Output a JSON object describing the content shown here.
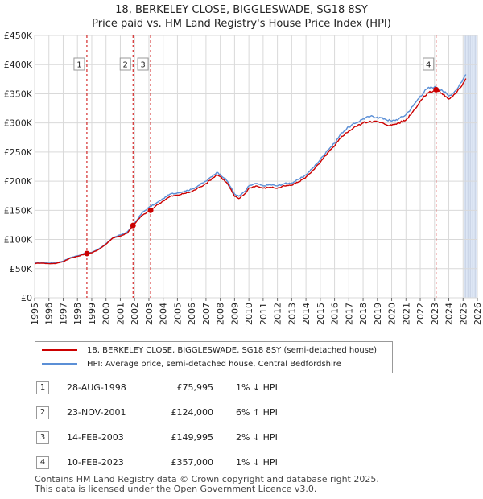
{
  "title_line1": "18, BERKELEY CLOSE, BIGGLESWADE, SG18 8SY",
  "title_line2": "Price paid vs. HM Land Registry's House Price Index (HPI)",
  "colors": {
    "red": "#cc0000",
    "blue": "#5b8fd6",
    "grid": "#d9d9d9",
    "shade": "#dde6f5"
  },
  "chart_data": {
    "type": "line",
    "x_range": [
      1995,
      2026
    ],
    "ylim": [
      0,
      450000
    ],
    "y_ticks": [
      {
        "v": 0,
        "label": "£0"
      },
      {
        "v": 50000,
        "label": "£50K"
      },
      {
        "v": 100000,
        "label": "£100K"
      },
      {
        "v": 150000,
        "label": "£150K"
      },
      {
        "v": 200000,
        "label": "£200K"
      },
      {
        "v": 250000,
        "label": "£250K"
      },
      {
        "v": 300000,
        "label": "£300K"
      },
      {
        "v": 350000,
        "label": "£350K"
      },
      {
        "v": 400000,
        "label": "£400K"
      },
      {
        "v": 450000,
        "label": "£450K"
      }
    ],
    "x_ticks": [
      "1995",
      "1996",
      "1997",
      "1998",
      "1999",
      "2000",
      "2001",
      "2002",
      "2003",
      "2004",
      "2005",
      "2006",
      "2007",
      "2008",
      "2009",
      "2010",
      "2011",
      "2012",
      "2013",
      "2014",
      "2015",
      "2016",
      "2017",
      "2018",
      "2019",
      "2020",
      "2021",
      "2022",
      "2023",
      "2024",
      "2025",
      "2026"
    ],
    "shaded_future_from": 2025.05,
    "series": [
      {
        "name": "HPI: Average price, semi-detached house, Central Bedfordshire",
        "color": "#5b8fd6",
        "points": [
          [
            1995.0,
            60000
          ],
          [
            1995.5,
            60500
          ],
          [
            1996.0,
            59500
          ],
          [
            1996.5,
            60000
          ],
          [
            1997.0,
            63000
          ],
          [
            1997.5,
            69000
          ],
          [
            1998.0,
            72000
          ],
          [
            1998.5,
            76000
          ],
          [
            1999.0,
            78000
          ],
          [
            1999.5,
            84000
          ],
          [
            2000.0,
            93000
          ],
          [
            2000.5,
            103000
          ],
          [
            2001.0,
            108000
          ],
          [
            2001.5,
            113000
          ],
          [
            2002.0,
            128000
          ],
          [
            2002.5,
            145000
          ],
          [
            2003.0,
            155000
          ],
          [
            2003.5,
            162000
          ],
          [
            2004.0,
            170000
          ],
          [
            2004.5,
            178000
          ],
          [
            2005.0,
            180000
          ],
          [
            2005.5,
            183000
          ],
          [
            2006.0,
            186000
          ],
          [
            2006.5,
            193000
          ],
          [
            2007.0,
            200000
          ],
          [
            2007.5,
            210000
          ],
          [
            2007.75,
            215000
          ],
          [
            2008.0,
            212000
          ],
          [
            2008.5,
            200000
          ],
          [
            2009.0,
            178000
          ],
          [
            2009.3,
            174000
          ],
          [
            2009.75,
            183000
          ],
          [
            2010.0,
            192000
          ],
          [
            2010.5,
            196000
          ],
          [
            2011.0,
            192000
          ],
          [
            2011.5,
            194000
          ],
          [
            2012.0,
            192000
          ],
          [
            2012.5,
            196000
          ],
          [
            2013.0,
            197000
          ],
          [
            2013.5,
            203000
          ],
          [
            2014.0,
            211000
          ],
          [
            2014.5,
            223000
          ],
          [
            2015.0,
            237000
          ],
          [
            2015.5,
            253000
          ],
          [
            2016.0,
            265000
          ],
          [
            2016.5,
            283000
          ],
          [
            2017.0,
            293000
          ],
          [
            2017.5,
            300000
          ],
          [
            2018.0,
            307000
          ],
          [
            2018.5,
            311000
          ],
          [
            2019.0,
            310000
          ],
          [
            2019.5,
            307000
          ],
          [
            2020.0,
            303000
          ],
          [
            2020.5,
            307000
          ],
          [
            2021.0,
            314000
          ],
          [
            2021.5,
            329000
          ],
          [
            2022.0,
            346000
          ],
          [
            2022.5,
            359000
          ],
          [
            2023.0,
            362000
          ],
          [
            2023.5,
            357000
          ],
          [
            2024.0,
            346000
          ],
          [
            2024.5,
            356000
          ],
          [
            2025.0,
            375000
          ],
          [
            2025.2,
            383000
          ]
        ]
      },
      {
        "name": "18, BERKELEY CLOSE, BIGGLESWADE, SG18 8SY (semi-detached house)",
        "color": "#cc0000",
        "points": [
          [
            1995.0,
            59000
          ],
          [
            1995.5,
            59500
          ],
          [
            1996.0,
            58500
          ],
          [
            1996.5,
            59000
          ],
          [
            1997.0,
            62000
          ],
          [
            1997.5,
            68000
          ],
          [
            1998.0,
            71000
          ],
          [
            1998.66,
            75995
          ],
          [
            1999.0,
            77000
          ],
          [
            1999.5,
            83000
          ],
          [
            2000.0,
            92000
          ],
          [
            2000.5,
            103000
          ],
          [
            2001.0,
            106000
          ],
          [
            2001.5,
            111000
          ],
          [
            2001.89,
            124000
          ],
          [
            2002.5,
            141000
          ],
          [
            2003.12,
            149995
          ],
          [
            2003.5,
            158000
          ],
          [
            2004.0,
            166000
          ],
          [
            2004.5,
            174000
          ],
          [
            2005.0,
            176000
          ],
          [
            2005.5,
            179000
          ],
          [
            2006.0,
            182000
          ],
          [
            2006.5,
            189000
          ],
          [
            2007.0,
            196000
          ],
          [
            2007.5,
            206000
          ],
          [
            2007.75,
            211000
          ],
          [
            2008.0,
            208000
          ],
          [
            2008.5,
            196000
          ],
          [
            2009.0,
            174000
          ],
          [
            2009.3,
            170000
          ],
          [
            2009.75,
            179000
          ],
          [
            2010.0,
            188000
          ],
          [
            2010.5,
            192000
          ],
          [
            2011.0,
            188000
          ],
          [
            2011.5,
            190000
          ],
          [
            2012.0,
            188000
          ],
          [
            2012.5,
            192000
          ],
          [
            2013.0,
            193000
          ],
          [
            2013.5,
            199000
          ],
          [
            2014.0,
            207000
          ],
          [
            2014.5,
            219000
          ],
          [
            2015.0,
            232000
          ],
          [
            2015.5,
            248000
          ],
          [
            2016.0,
            260000
          ],
          [
            2016.5,
            277000
          ],
          [
            2017.0,
            286000
          ],
          [
            2017.5,
            294000
          ],
          [
            2018.0,
            300000
          ],
          [
            2018.5,
            303000
          ],
          [
            2019.0,
            302000
          ],
          [
            2019.5,
            298000
          ],
          [
            2020.0,
            296000
          ],
          [
            2020.5,
            300000
          ],
          [
            2021.0,
            305000
          ],
          [
            2021.5,
            320000
          ],
          [
            2022.0,
            337000
          ],
          [
            2022.5,
            351000
          ],
          [
            2023.11,
            357000
          ],
          [
            2023.5,
            351000
          ],
          [
            2024.0,
            341000
          ],
          [
            2024.5,
            350000
          ],
          [
            2025.0,
            368000
          ],
          [
            2025.2,
            376000
          ]
        ]
      }
    ],
    "markers": [
      {
        "label": "1",
        "x": 1998.66,
        "y": 75995
      },
      {
        "label": "2",
        "x": 2001.89,
        "y": 124000
      },
      {
        "label": "3",
        "x": 2003.12,
        "y": 149995
      },
      {
        "label": "4",
        "x": 2023.11,
        "y": 357000
      }
    ]
  },
  "legend": [
    {
      "label": "18, BERKELEY CLOSE, BIGGLESWADE, SG18 8SY (semi-detached house)",
      "color": "#cc0000"
    },
    {
      "label": "HPI: Average price, semi-detached house, Central Bedfordshire",
      "color": "#5b8fd6"
    }
  ],
  "transactions": [
    {
      "num": "1",
      "date": "28-AUG-1998",
      "price": "£75,995",
      "hpi": "1% ↓ HPI"
    },
    {
      "num": "2",
      "date": "23-NOV-2001",
      "price": "£124,000",
      "hpi": "6% ↑ HPI"
    },
    {
      "num": "3",
      "date": "14-FEB-2003",
      "price": "£149,995",
      "hpi": "2% ↓ HPI"
    },
    {
      "num": "4",
      "date": "10-FEB-2023",
      "price": "£357,000",
      "hpi": "1% ↓ HPI"
    }
  ],
  "footer_line1": "Contains HM Land Registry data © Crown copyright and database right 2025.",
  "footer_line2": "This data is licensed under the Open Government Licence v3.0."
}
